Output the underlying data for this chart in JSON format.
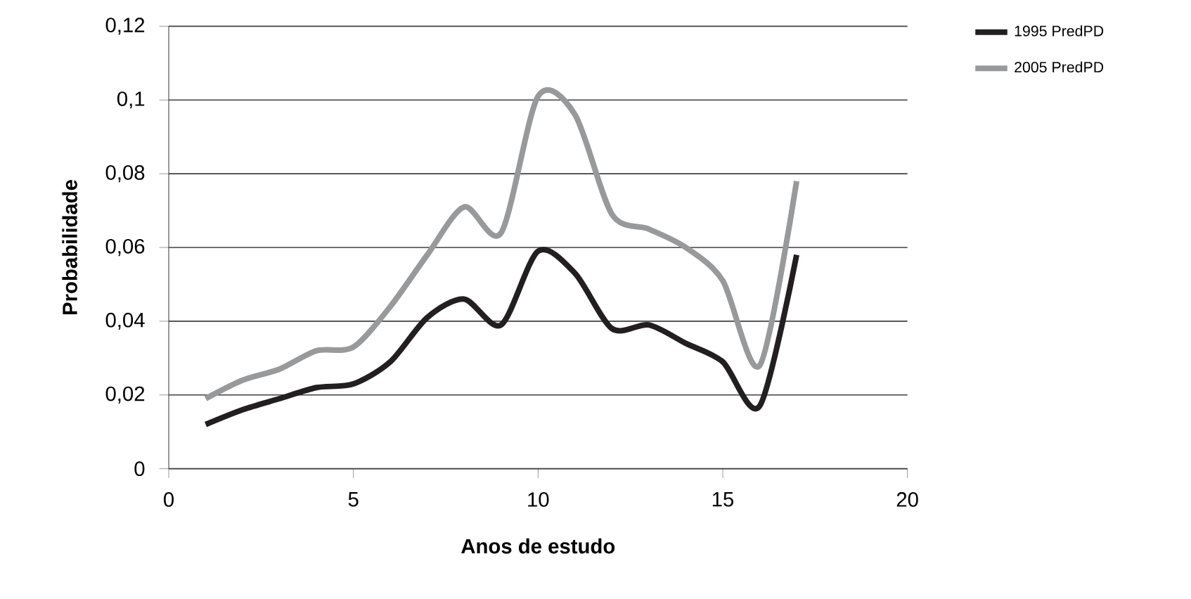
{
  "chart_data": {
    "type": "line",
    "xlabel": "Anos de estudo",
    "ylabel": "Probabilidade",
    "x": [
      1,
      2,
      3,
      4,
      5,
      6,
      7,
      8,
      9,
      10,
      11,
      12,
      13,
      14,
      15,
      16,
      17
    ],
    "series": [
      {
        "name": "1995 PredPD",
        "color": "#231f20",
        "values": [
          0.012,
          0.016,
          0.019,
          0.022,
          0.023,
          0.029,
          0.041,
          0.046,
          0.039,
          0.059,
          0.053,
          0.038,
          0.039,
          0.034,
          0.029,
          0.017,
          0.058
        ]
      },
      {
        "name": "2005 PredPD",
        "color": "#98999b",
        "values": [
          0.019,
          0.024,
          0.027,
          0.032,
          0.033,
          0.044,
          0.058,
          0.071,
          0.064,
          0.101,
          0.096,
          0.069,
          0.065,
          0.06,
          0.051,
          0.028,
          0.078
        ]
      }
    ],
    "xlim": [
      0,
      20
    ],
    "xticks": [
      0,
      5,
      10,
      15,
      20
    ],
    "ylim": [
      0,
      0.12
    ],
    "yticks": [
      {
        "value": 0,
        "label": "0"
      },
      {
        "value": 0.02,
        "label": "0,02"
      },
      {
        "value": 0.04,
        "label": "0,04"
      },
      {
        "value": 0.06,
        "label": "0,06"
      },
      {
        "value": 0.08,
        "label": "0,08"
      },
      {
        "value": 0.1,
        "label": "0,1"
      },
      {
        "value": 0.12,
        "label": "0,12"
      }
    ],
    "grid": "y",
    "legend": "top right",
    "line_style": "solid",
    "marker": "none"
  }
}
